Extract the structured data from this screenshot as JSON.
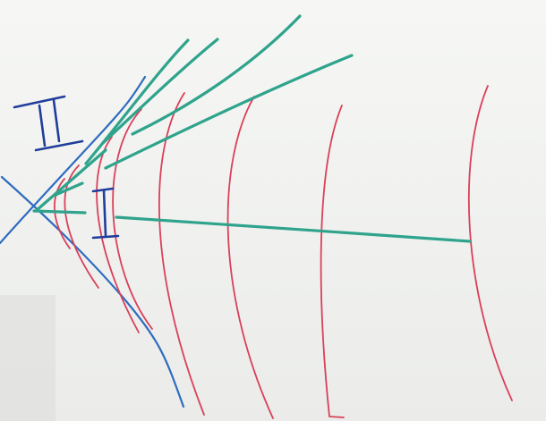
{
  "diagram": {
    "region_labels": {
      "region_one": "I",
      "region_two": "II"
    },
    "colors": {
      "board": "#f3f4f2",
      "hyperbola_red": "#d9405a",
      "ray_green": "#2fa38c",
      "lightcone_blue": "#2f6bbf",
      "label_navy": "#1f3d9c"
    },
    "element_counts": {
      "red_hyperbola_curves": 8,
      "green_rays": 8,
      "blue_cone_lines": 2
    }
  }
}
